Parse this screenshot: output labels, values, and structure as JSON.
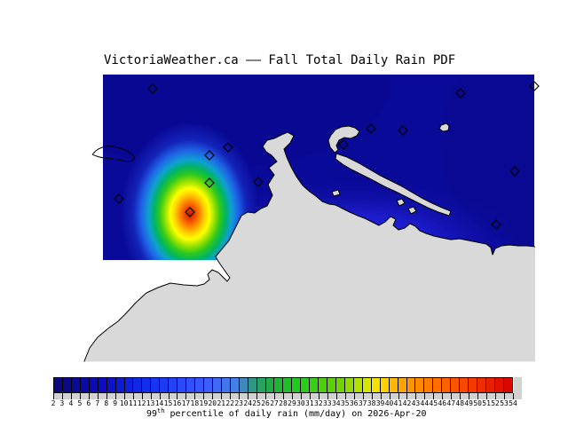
{
  "title": "VictoriaWeather.ca —— Fall Total Daily Rain PDF",
  "caption": {
    "prefix": "99",
    "sup": "th",
    "suffix": " percentile of daily rain (mm/day) on 2026-Apr-20"
  },
  "colorbar": {
    "cells": 52,
    "label_min": 2,
    "label_max": 54,
    "label_step": 1,
    "gradient": [
      [
        0.0,
        "#0a0a73"
      ],
      [
        0.1,
        "#0a0ac0"
      ],
      [
        0.21,
        "#1430f0"
      ],
      [
        0.33,
        "#3c5aff"
      ],
      [
        0.4,
        "#4682e1"
      ],
      [
        0.44,
        "#2d9b72"
      ],
      [
        0.48,
        "#1fae3c"
      ],
      [
        0.53,
        "#1ecc1e"
      ],
      [
        0.62,
        "#66d200"
      ],
      [
        0.68,
        "#d2e600"
      ],
      [
        0.71,
        "#ffe100"
      ],
      [
        0.75,
        "#ffaa00"
      ],
      [
        0.83,
        "#ff7300"
      ],
      [
        0.91,
        "#f53c00"
      ],
      [
        1.0,
        "#d70000"
      ]
    ]
  },
  "map": {
    "background": "#ffffff",
    "sea_color": "#0a0a99",
    "sea_shade_color": "#08088c",
    "land_color": "#d9d9d9",
    "coast_color": "#000000",
    "blob_gradient": [
      [
        0.0,
        "#c61e00"
      ],
      [
        0.07,
        "#ee4400"
      ],
      [
        0.15,
        "#ff8c00"
      ],
      [
        0.22,
        "#ffd200"
      ],
      [
        0.28,
        "#ffff00"
      ],
      [
        0.36,
        "#96e100"
      ],
      [
        0.44,
        "#2dc81e"
      ],
      [
        0.52,
        "#00b464"
      ],
      [
        0.6,
        "#0fa0d2"
      ],
      [
        0.7,
        "#1e64e6"
      ],
      [
        0.82,
        "#1423b9"
      ],
      [
        1.0,
        "#0a0a99"
      ]
    ],
    "coast_glow_gradient": [
      [
        0.0,
        "#2d2df0",
        1
      ],
      [
        0.45,
        "#1e1ed2",
        0.85
      ],
      [
        1.0,
        "#0a0a99",
        0
      ]
    ],
    "stations": [
      [
        172,
        100
      ],
      [
        257,
        166
      ],
      [
        236,
        175
      ],
      [
        236,
        206
      ],
      [
        291,
        205
      ],
      [
        134,
        224
      ],
      [
        214,
        239
      ],
      [
        387,
        163
      ],
      [
        418,
        145
      ],
      [
        454,
        147
      ],
      [
        519,
        105
      ],
      [
        602,
        97
      ],
      [
        580,
        193
      ],
      [
        559,
        253
      ]
    ]
  },
  "chart_data": {
    "type": "heatmap",
    "title": "VictoriaWeather.ca —— Fall Total Daily Rain PDF",
    "colorbar_label": "99th percentile of daily rain (mm/day) on 2026-Apr-20",
    "units": "mm/day",
    "date": "2026-Apr-20",
    "value_range": [
      2,
      54
    ],
    "colorbar_tick_step": 1,
    "colorbar_orientation": "horizontal",
    "color_scale_low_to_high": [
      "navy",
      "blue",
      "teal",
      "green",
      "yellow",
      "orange",
      "red"
    ],
    "hotspot_peak_xy": [
      214,
      241
    ],
    "station_markers_xy": [
      [
        172,
        100
      ],
      [
        257,
        166
      ],
      [
        236,
        175
      ],
      [
        236,
        206
      ],
      [
        291,
        205
      ],
      [
        134,
        224
      ],
      [
        214,
        239
      ],
      [
        387,
        163
      ],
      [
        418,
        145
      ],
      [
        454,
        147
      ],
      [
        519,
        105
      ],
      [
        602,
        97
      ],
      [
        580,
        193
      ],
      [
        559,
        253
      ]
    ]
  }
}
